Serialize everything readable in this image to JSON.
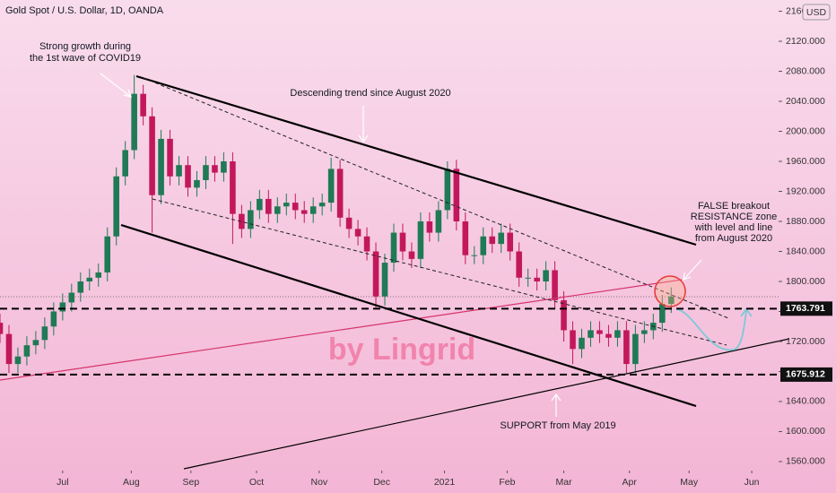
{
  "chart_data": {
    "type": "candlestick",
    "title": "Gold Spot / U.S. Dollar, 1D, OANDA",
    "currency": "USD",
    "up_color": "#1f7a55",
    "down_color": "#c2185b",
    "x": [
      0,
      3,
      6,
      9,
      12,
      15,
      18,
      21,
      24,
      27,
      30,
      33,
      36,
      39,
      42,
      45,
      48,
      51,
      54,
      57,
      60,
      63,
      66,
      69,
      72,
      75,
      78,
      81,
      84,
      87,
      90,
      93,
      96,
      99,
      102,
      105,
      108,
      111,
      114,
      117,
      120,
      123,
      126,
      129,
      132,
      135,
      138,
      141,
      144,
      147,
      150,
      153,
      156,
      159,
      162,
      165,
      168,
      171,
      174,
      177,
      180,
      183,
      186,
      189,
      192,
      195,
      198,
      201,
      204,
      207,
      210,
      213,
      216,
      219,
      222,
      225
    ],
    "open": [
      1745,
      1730,
      1690,
      1700,
      1715,
      1722,
      1740,
      1760,
      1772,
      1785,
      1800,
      1805,
      1812,
      1860,
      1940,
      1975,
      2050,
      2020,
      1915,
      1990,
      1940,
      1955,
      1925,
      1935,
      1955,
      1945,
      1960,
      1890,
      1870,
      1895,
      1910,
      1890,
      1900,
      1905,
      1895,
      1890,
      1900,
      1905,
      1950,
      1885,
      1870,
      1860,
      1840,
      1780,
      1825,
      1865,
      1840,
      1830,
      1880,
      1865,
      1895,
      1950,
      1880,
      1835,
      1835,
      1860,
      1850,
      1865,
      1840,
      1805,
      1805,
      1800,
      1815,
      1775,
      1735,
      1710,
      1725,
      1735,
      1730,
      1725,
      1735,
      1690,
      1730,
      1735,
      1745,
      1770
    ],
    "high": [
      1757,
      1742,
      1712,
      1727,
      1734,
      1752,
      1772,
      1784,
      1797,
      1812,
      1817,
      1824,
      1872,
      1952,
      1987,
      2075,
      2062,
      2032,
      2002,
      2002,
      1967,
      1967,
      1947,
      1967,
      1967,
      1972,
      1972,
      1902,
      1907,
      1922,
      1922,
      1912,
      1917,
      1917,
      1907,
      1912,
      1917,
      1965,
      1962,
      1897,
      1882,
      1872,
      1852,
      1837,
      1877,
      1877,
      1852,
      1892,
      1892,
      1907,
      1960,
      1962,
      1892,
      1847,
      1872,
      1872,
      1877,
      1877,
      1852,
      1817,
      1817,
      1827,
      1827,
      1787,
      1747,
      1737,
      1747,
      1747,
      1742,
      1747,
      1747,
      1742,
      1747,
      1757,
      1782,
      1792
    ],
    "low": [
      1718,
      1678,
      1678,
      1688,
      1703,
      1710,
      1728,
      1748,
      1760,
      1773,
      1788,
      1793,
      1800,
      1848,
      1928,
      1963,
      2008,
      1865,
      1903,
      1928,
      1928,
      1913,
      1913,
      1923,
      1933,
      1933,
      1850,
      1858,
      1858,
      1883,
      1878,
      1878,
      1888,
      1883,
      1878,
      1878,
      1888,
      1893,
      1873,
      1858,
      1848,
      1828,
      1765,
      1768,
      1813,
      1828,
      1818,
      1818,
      1853,
      1853,
      1883,
      1868,
      1823,
      1823,
      1823,
      1838,
      1838,
      1828,
      1793,
      1793,
      1788,
      1788,
      1763,
      1720,
      1690,
      1698,
      1713,
      1718,
      1713,
      1713,
      1678,
      1678,
      1718,
      1723,
      1733,
      1758
    ],
    "close": [
      1730,
      1690,
      1700,
      1715,
      1722,
      1740,
      1760,
      1772,
      1785,
      1800,
      1805,
      1812,
      1860,
      1940,
      1975,
      2050,
      2020,
      1915,
      1990,
      1940,
      1955,
      1925,
      1935,
      1955,
      1945,
      1960,
      1890,
      1870,
      1895,
      1910,
      1890,
      1900,
      1905,
      1895,
      1890,
      1900,
      1905,
      1950,
      1885,
      1870,
      1860,
      1840,
      1780,
      1825,
      1865,
      1840,
      1830,
      1880,
      1865,
      1895,
      1950,
      1880,
      1835,
      1835,
      1860,
      1850,
      1865,
      1840,
      1805,
      1805,
      1800,
      1815,
      1775,
      1735,
      1710,
      1725,
      1735,
      1730,
      1725,
      1735,
      1690,
      1730,
      1735,
      1745,
      1770,
      1780
    ],
    "xlim": [
      0,
      261
    ],
    "xticks": [
      {
        "value": 21,
        "label": "Jul"
      },
      {
        "value": 44,
        "label": "Aug"
      },
      {
        "value": 64,
        "label": "Sep"
      },
      {
        "value": 86,
        "label": "Oct"
      },
      {
        "value": 107,
        "label": "Nov"
      },
      {
        "value": 128,
        "label": "Dec"
      },
      {
        "value": 149,
        "label": "2021"
      },
      {
        "value": 170,
        "label": "Feb"
      },
      {
        "value": 189,
        "label": "Mar"
      },
      {
        "value": 211,
        "label": "Apr"
      },
      {
        "value": 231,
        "label": "May"
      },
      {
        "value": 252,
        "label": "Jun"
      }
    ],
    "ylim": [
      1548,
      2175
    ],
    "yticks": [
      {
        "value": 1560,
        "label": "1560.000"
      },
      {
        "value": 1600,
        "label": "1600.000"
      },
      {
        "value": 1640,
        "label": "1640.000"
      },
      {
        "value": 1680,
        "label": "1680.000"
      },
      {
        "value": 1720,
        "label": "1720.000"
      },
      {
        "value": 1760,
        "label": "1760.000"
      },
      {
        "value": 1800,
        "label": "1800.000"
      },
      {
        "value": 1840,
        "label": "1840.000"
      },
      {
        "value": 1880,
        "label": "1880.000"
      },
      {
        "value": 1920,
        "label": "1920.000"
      },
      {
        "value": 1960,
        "label": "1960.000"
      },
      {
        "value": 2000,
        "label": "2000.000"
      },
      {
        "value": 2040,
        "label": "2040.000"
      },
      {
        "value": 2080,
        "label": "2080.000"
      },
      {
        "value": 2120,
        "label": "2120.000"
      },
      {
        "value": 2160,
        "label": "2160.000"
      }
    ],
    "levels": [
      1763.791,
      1675.912
    ],
    "grid": false,
    "annotations": {
      "covid": [
        "Strong growth during",
        "the 1st wave of COVID19"
      ],
      "trend": "Descending trend since August 2020",
      "breakout": [
        "FALSE breakout",
        "RESISTANCE zone",
        "with level and line",
        "from August 2020"
      ],
      "support": "SUPPORT from May 2019",
      "watermark": "by Lingrid"
    }
  }
}
